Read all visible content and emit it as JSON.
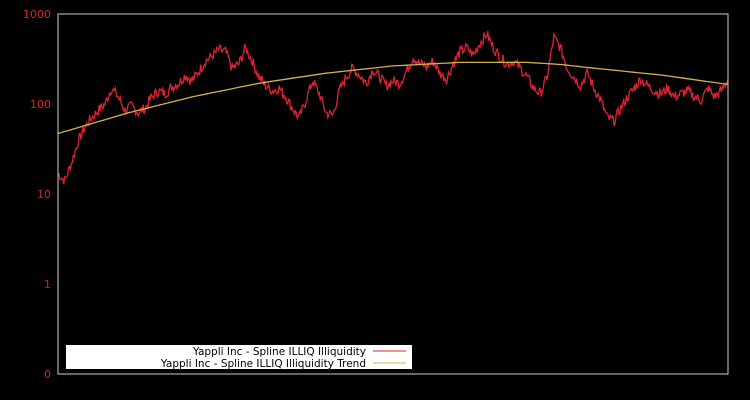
{
  "chart_data": {
    "type": "line",
    "title": "",
    "xlabel": "",
    "ylabel": "",
    "yscale": "log",
    "ylim": [
      0.1,
      1000
    ],
    "y_tick_labels": [
      "1000",
      "100",
      "10",
      "1",
      "0"
    ],
    "y_tick_values": [
      1000,
      100,
      10,
      1,
      0.1
    ],
    "grid": false,
    "legend_position": "lower-left",
    "colors": {
      "background": "#000000",
      "axis": "#cccccc",
      "tick_label": "#dd2222",
      "series": "#dd2233",
      "trend": "#d4b04a",
      "legend_bg": "#ffffff"
    },
    "series": [
      {
        "name": "Yappli Inc - Spline ILLIQ Illiquidity",
        "x": [
          0,
          0.01,
          0.02,
          0.03,
          0.04,
          0.05,
          0.06,
          0.07,
          0.08,
          0.09,
          0.1,
          0.11,
          0.12,
          0.13,
          0.14,
          0.15,
          0.16,
          0.17,
          0.18,
          0.19,
          0.2,
          0.21,
          0.22,
          0.23,
          0.24,
          0.25,
          0.26,
          0.27,
          0.28,
          0.29,
          0.3,
          0.31,
          0.32,
          0.33,
          0.34,
          0.35,
          0.36,
          0.37,
          0.38,
          0.39,
          0.4,
          0.41,
          0.42,
          0.43,
          0.44,
          0.45,
          0.46,
          0.47,
          0.48,
          0.49,
          0.5,
          0.51,
          0.52,
          0.53,
          0.54,
          0.55,
          0.56,
          0.57,
          0.58,
          0.59,
          0.6,
          0.61,
          0.62,
          0.63,
          0.64,
          0.65,
          0.66,
          0.67,
          0.68,
          0.69,
          0.7,
          0.71,
          0.72,
          0.73,
          0.74,
          0.75,
          0.76,
          0.77,
          0.78,
          0.79,
          0.8,
          0.81,
          0.82,
          0.83,
          0.84,
          0.85,
          0.86,
          0.87,
          0.88,
          0.89,
          0.9,
          0.91,
          0.92,
          0.93,
          0.94,
          0.95,
          0.96,
          0.97,
          0.98,
          0.99,
          1.0
        ],
        "values": [
          17,
          14,
          22,
          38,
          55,
          70,
          85,
          100,
          150,
          120,
          85,
          95,
          80,
          90,
          120,
          140,
          130,
          155,
          170,
          210,
          180,
          230,
          300,
          340,
          400,
          380,
          250,
          280,
          420,
          300,
          200,
          160,
          140,
          150,
          120,
          90,
          70,
          110,
          180,
          130,
          80,
          75,
          140,
          200,
          250,
          210,
          170,
          240,
          200,
          160,
          180,
          170,
          230,
          330,
          280,
          260,
          300,
          220,
          190,
          280,
          380,
          420,
          350,
          480,
          600,
          420,
          330,
          280,
          300,
          250,
          200,
          150,
          130,
          200,
          550,
          420,
          250,
          200,
          160,
          220,
          150,
          110,
          70,
          65,
          90,
          120,
          150,
          190,
          160,
          140,
          130,
          150,
          120,
          130,
          140,
          120,
          110,
          150,
          120,
          140,
          190
        ]
      },
      {
        "name": "Yappli Inc - Spline ILLIQ Illiquidity Trend",
        "x": [
          0,
          0.1,
          0.2,
          0.3,
          0.4,
          0.5,
          0.6,
          0.7,
          0.75,
          0.8,
          0.9,
          1.0
        ],
        "values": [
          47,
          78,
          120,
          170,
          220,
          265,
          290,
          290,
          275,
          250,
          210,
          165
        ]
      }
    ]
  },
  "legend": {
    "items": [
      {
        "label": "Yappli Inc - Spline ILLIQ Illiquidity",
        "color": "#dd2233"
      },
      {
        "label": "Yappli Inc - Spline ILLIQ Illiquidity Trend",
        "color": "#d4b04a"
      }
    ]
  }
}
